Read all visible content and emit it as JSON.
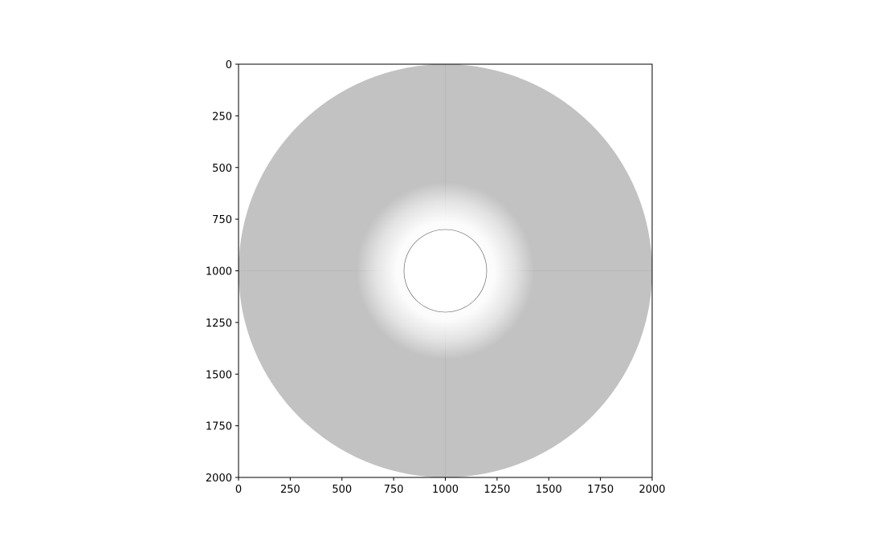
{
  "chart_data": {
    "type": "heatmap",
    "title": "",
    "xlabel": "",
    "ylabel": "",
    "xlim": [
      0,
      2000
    ],
    "ylim": [
      2000,
      0
    ],
    "x_ticks": [
      0,
      250,
      500,
      750,
      1000,
      1250,
      1500,
      1750,
      2000
    ],
    "y_ticks": [
      0,
      250,
      500,
      750,
      1000,
      1250,
      1500,
      1750,
      2000
    ],
    "x_tick_labels": [
      "0",
      "250",
      "500",
      "750",
      "1000",
      "1250",
      "1500",
      "1750",
      "2000"
    ],
    "y_tick_labels": [
      "0",
      "250",
      "500",
      "750",
      "1000",
      "1250",
      "1500",
      "1750",
      "2000"
    ],
    "y_axis_inverted": true,
    "grid": false,
    "colormap": "grayscale",
    "image_content": {
      "center": [
        1000,
        1000
      ],
      "outer_disk_radius": 1000,
      "inner_circle_radius": 200,
      "bright_halo_radius": 430,
      "disk_gray": "#c2c2c2",
      "halo_color": "#ffffff",
      "inner_circle_outline": "#555555",
      "background": "#ffffff"
    }
  }
}
